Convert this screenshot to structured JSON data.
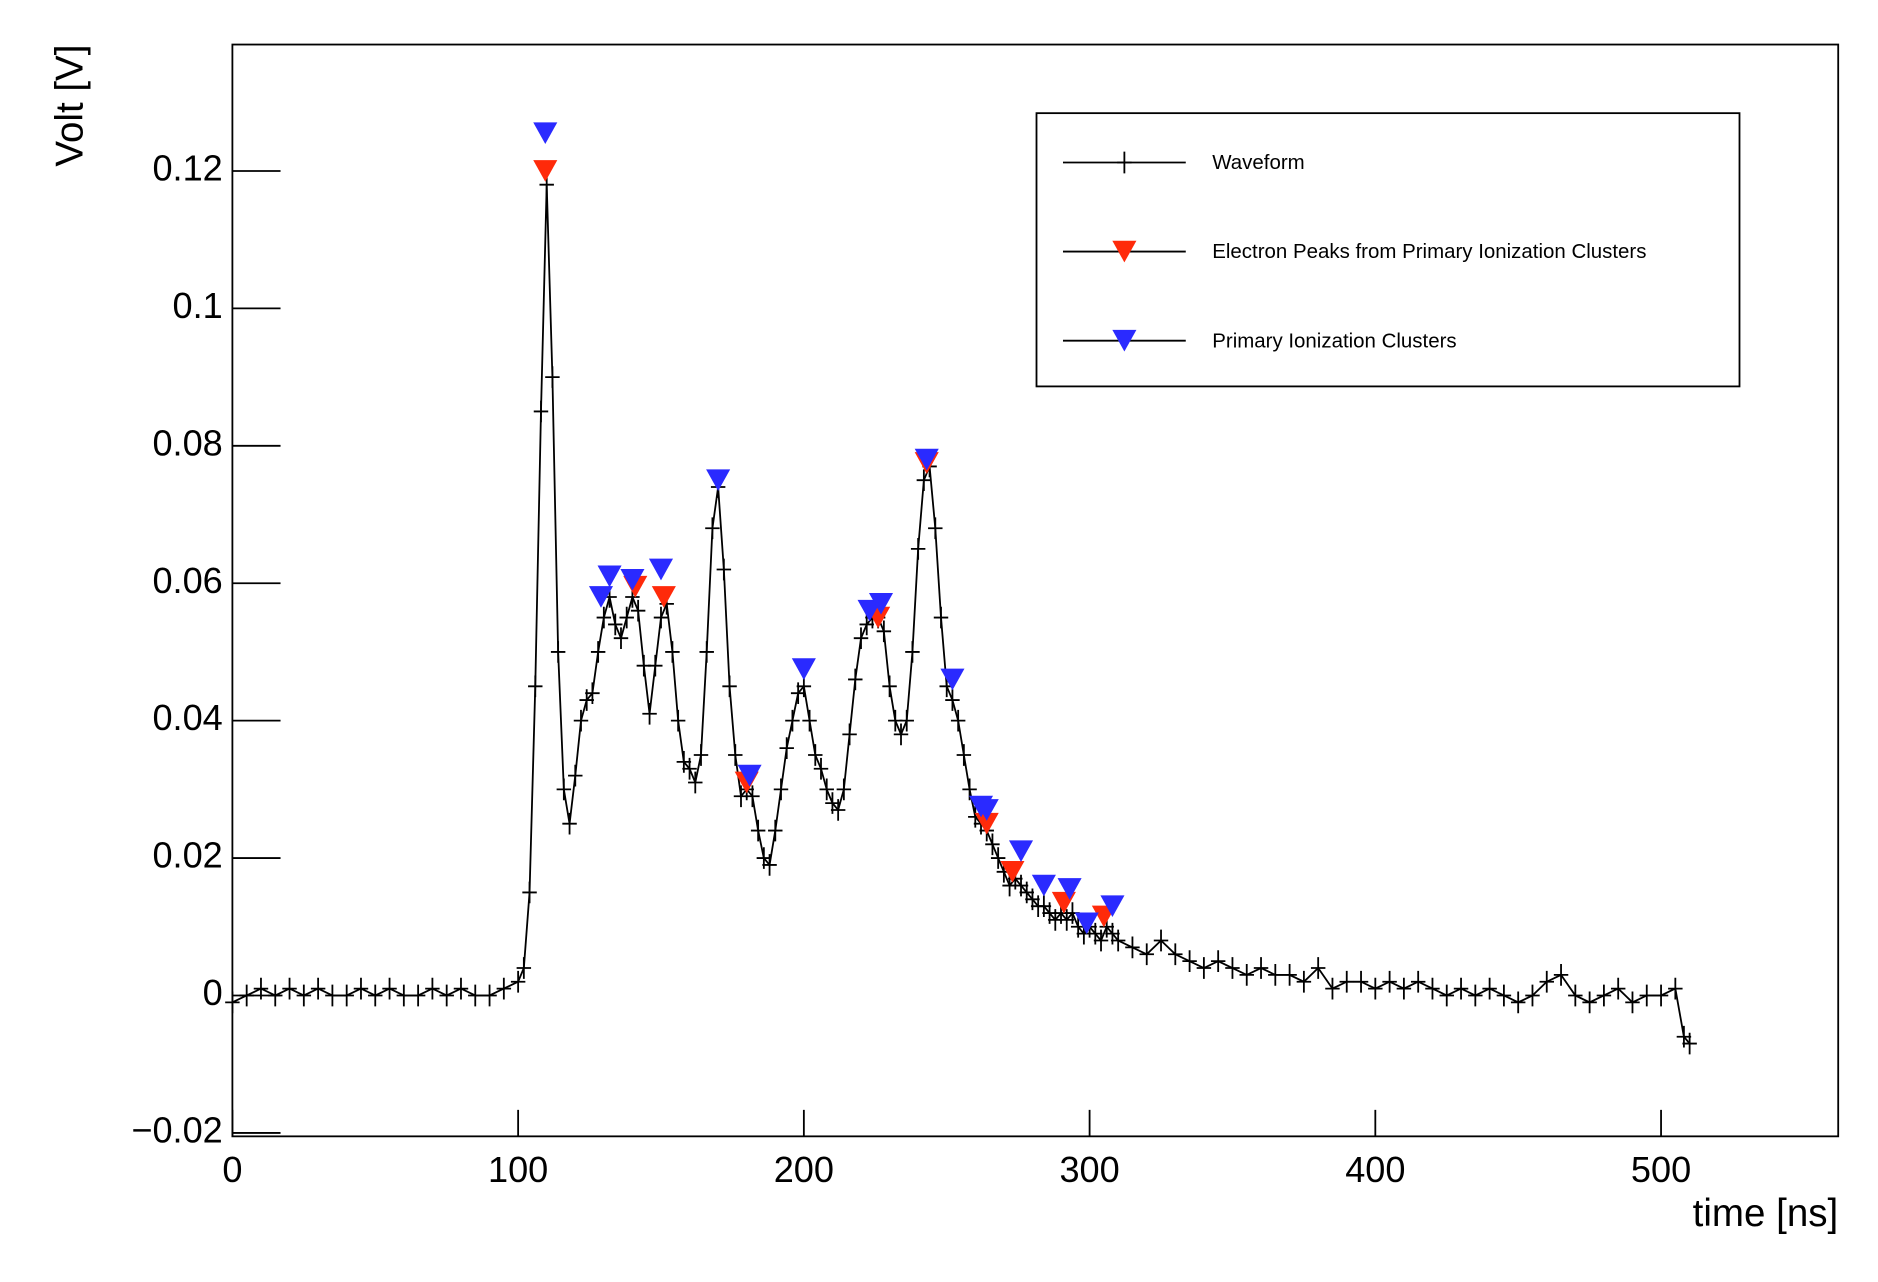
{
  "chart_data": {
    "type": "line",
    "xlabel": "time [ns]",
    "ylabel": "Volt [V]",
    "xlim": [
      0,
      562
    ],
    "ylim": [
      -0.0205,
      0.1384
    ],
    "xticks": [
      0,
      100,
      200,
      300,
      400,
      500
    ],
    "yticks": [
      {
        "value": -0.02,
        "label": "−0.02"
      },
      0,
      0.02,
      0.04,
      0.06,
      0.08,
      0.1,
      0.12
    ],
    "legend": "upper right",
    "series": [
      {
        "name": "Waveform",
        "color": "#000000",
        "marker": "cross",
        "line": true,
        "x": [
          0,
          5,
          10,
          15,
          20,
          25,
          30,
          35,
          40,
          45,
          50,
          55,
          60,
          65,
          70,
          75,
          80,
          85,
          90,
          95,
          100,
          102,
          104,
          106,
          108,
          110,
          112,
          114,
          116,
          118,
          120,
          122,
          124,
          126,
          128,
          130,
          132,
          134,
          136,
          138,
          140,
          142,
          144,
          146,
          148,
          150,
          152,
          154,
          156,
          158,
          160,
          162,
          164,
          166,
          168,
          170,
          172,
          174,
          176,
          178,
          180,
          182,
          184,
          186,
          188,
          190,
          192,
          194,
          196,
          198,
          200,
          202,
          204,
          206,
          208,
          210,
          212,
          214,
          216,
          218,
          220,
          222,
          224,
          226,
          228,
          230,
          232,
          234,
          236,
          238,
          240,
          242,
          244,
          246,
          248,
          250,
          252,
          254,
          256,
          258,
          260,
          262,
          264,
          266,
          268,
          270,
          272,
          274,
          276,
          278,
          280,
          282,
          284,
          286,
          288,
          290,
          292,
          294,
          296,
          298,
          300,
          302,
          304,
          306,
          308,
          310,
          315,
          320,
          325,
          330,
          335,
          340,
          345,
          350,
          355,
          360,
          365,
          370,
          375,
          380,
          385,
          390,
          395,
          400,
          405,
          410,
          415,
          420,
          425,
          430,
          435,
          440,
          445,
          450,
          455,
          460,
          465,
          470,
          475,
          480,
          485,
          490,
          495,
          500,
          505,
          508,
          510
        ],
        "values": [
          -0.001,
          0,
          0.001,
          0,
          0.001,
          0,
          0.001,
          0,
          0,
          0.001,
          0,
          0.001,
          0,
          0,
          0.001,
          0,
          0.001,
          0,
          0,
          0.001,
          0.002,
          0.004,
          0.015,
          0.045,
          0.085,
          0.118,
          0.09,
          0.05,
          0.03,
          0.025,
          0.032,
          0.04,
          0.043,
          0.044,
          0.05,
          0.055,
          0.058,
          0.054,
          0.052,
          0.055,
          0.058,
          0.056,
          0.048,
          0.041,
          0.048,
          0.055,
          0.057,
          0.05,
          0.04,
          0.034,
          0.033,
          0.031,
          0.035,
          0.05,
          0.068,
          0.074,
          0.062,
          0.045,
          0.035,
          0.029,
          0.03,
          0.029,
          0.024,
          0.02,
          0.019,
          0.024,
          0.03,
          0.036,
          0.04,
          0.044,
          0.045,
          0.04,
          0.035,
          0.033,
          0.03,
          0.028,
          0.027,
          0.03,
          0.038,
          0.046,
          0.052,
          0.054,
          0.055,
          0.055,
          0.053,
          0.045,
          0.04,
          0.038,
          0.04,
          0.05,
          0.065,
          0.075,
          0.077,
          0.068,
          0.055,
          0.045,
          0.043,
          0.04,
          0.035,
          0.03,
          0.026,
          0.025,
          0.024,
          0.022,
          0.02,
          0.018,
          0.016,
          0.017,
          0.016,
          0.015,
          0.014,
          0.013,
          0.013,
          0.012,
          0.011,
          0.012,
          0.011,
          0.012,
          0.01,
          0.009,
          0.01,
          0.009,
          0.008,
          0.01,
          0.009,
          0.008,
          0.007,
          0.006,
          0.008,
          0.006,
          0.005,
          0.004,
          0.005,
          0.004,
          0.003,
          0.004,
          0.003,
          0.003,
          0.002,
          0.004,
          0.001,
          0.002,
          0.002,
          0.001,
          0.002,
          0.001,
          0.002,
          0.001,
          0,
          0.001,
          0,
          0.001,
          0,
          -0.001,
          0,
          0.002,
          0.003,
          0,
          -0.001,
          0,
          0.001,
          -0.001,
          0,
          0,
          0.001,
          -0.006,
          -0.007
        ]
      },
      {
        "name": "Electron Peaks from Primary Ionization Clusters",
        "color": "#ff2a0a",
        "marker": "triangle-down",
        "line": false,
        "x": [
          109.5,
          141,
          151,
          180,
          226,
          243,
          264,
          273,
          291,
          305
        ],
        "values": [
          0.12,
          0.0595,
          0.058,
          0.031,
          0.055,
          0.0775,
          0.025,
          0.018,
          0.0135,
          0.0115
        ]
      },
      {
        "name": "Primary Ionization Clusters",
        "color": "#2a2aff",
        "marker": "triangle-down",
        "line": false,
        "x": [
          109.5,
          129,
          132,
          140,
          150,
          170,
          181,
          200,
          223,
          227,
          243,
          252,
          262,
          264,
          276,
          284,
          293,
          299,
          308
        ],
        "values": [
          0.1255,
          0.058,
          0.061,
          0.0605,
          0.062,
          0.075,
          0.032,
          0.0475,
          0.056,
          0.057,
          0.078,
          0.046,
          0.0275,
          0.027,
          0.021,
          0.016,
          0.0155,
          0.0105,
          0.013
        ]
      }
    ]
  }
}
